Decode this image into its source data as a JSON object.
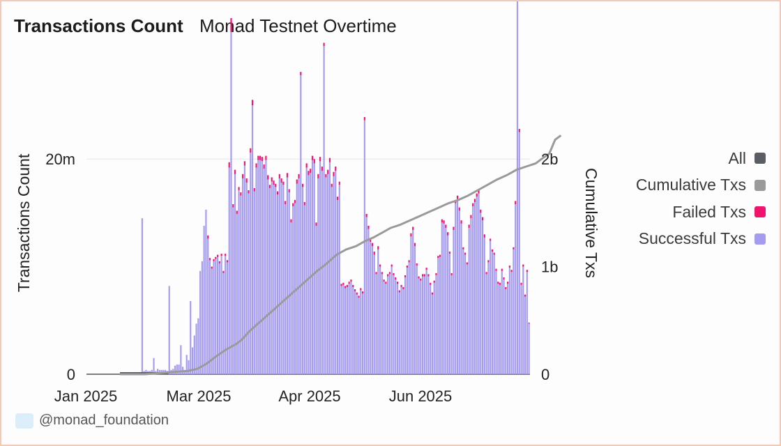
{
  "header": {
    "title": "Transactions Count",
    "subtitle": "Monad Testnet Overtime"
  },
  "credit": {
    "text": "@monad_foundation"
  },
  "legend": {
    "items": [
      {
        "label": "All",
        "color": "#5a5d63"
      },
      {
        "label": "Cumulative Txs",
        "color": "#9a9a9a"
      },
      {
        "label": "Failed Txs",
        "color": "#f0146e"
      },
      {
        "label": "Successful Txs",
        "color": "#a59cf0"
      }
    ]
  },
  "chart_data": {
    "type": "bar",
    "ylabel": "Transactions Count",
    "y2label": "Cumulative Txs",
    "x_ticks": [
      "Jan 2025",
      "Mar 2025",
      "Apr 2025",
      "Jun 2025"
    ],
    "y_ticks": [
      {
        "value": 0,
        "label": "0"
      },
      {
        "value": 20000000,
        "label": "20m"
      }
    ],
    "y2_ticks": [
      {
        "value": 0,
        "label": "0"
      },
      {
        "value": 1000000000,
        "label": "1b"
      },
      {
        "value": 2000000000,
        "label": "2b"
      }
    ],
    "ylim": [
      0,
      28500000
    ],
    "y2lim": [
      0,
      2850000000
    ],
    "grid": true,
    "legend_position": "right",
    "series": [
      {
        "name": "Successful Txs",
        "color": "#a59cf0",
        "kind": "bar",
        "values": [
          0.05,
          0.05,
          0.1,
          0.1,
          0.12,
          0.1,
          0.1,
          0.2,
          0.15,
          0.1,
          0.2,
          14.5,
          0.3,
          0.4,
          0.3,
          0.3,
          0.4,
          1.5,
          0.3,
          0.5,
          0.4,
          0.4,
          0.4,
          0.4,
          0.3,
          8.2,
          0.4,
          0.5,
          0.8,
          0.9,
          0.9,
          2.7,
          0.7,
          0.4,
          1.8,
          1.3,
          6.8,
          2.5,
          3.6,
          4.7,
          5.2,
          9.6,
          10.5,
          13.8,
          15.3,
          12.6,
          10.6,
          9.8,
          10.5,
          10.7,
          10.9,
          10.3,
          11.0,
          9.4,
          11.0,
          10.4,
          19.2,
          31.8,
          15.5,
          18.6,
          14.9,
          17.1,
          16.6,
          18.2,
          19.4,
          17.8,
          16.8,
          20.6,
          25.0,
          17.0,
          19.2,
          19.9,
          19.9,
          19.8,
          19.1,
          19.9,
          18.1,
          17.3,
          17.9,
          17.6,
          17.4,
          16.7,
          18.2,
          17.8,
          17.6,
          15.8,
          18.3,
          16.9,
          14.1,
          15.6,
          15.9,
          17.7,
          18.2,
          27.8,
          17.4,
          15.7,
          19.2,
          18.5,
          18.7,
          19.9,
          19.6,
          13.8,
          18.2,
          19.8,
          18.9,
          30.5,
          18.3,
          18.6,
          19.7,
          17.4,
          18.4,
          18.9,
          16.2,
          17.6,
          8.2,
          8.3,
          8.0,
          8.1,
          8.4,
          8.6,
          8.1,
          7.7,
          7.4,
          7.1,
          7.8,
          7.5,
          23.6,
          14.6,
          13.5,
          12.3,
          11.9,
          11.1,
          9.3,
          11.6,
          10.0,
          9.3,
          8.6,
          8.4,
          9.1,
          9.3,
          10.0,
          9.2,
          8.8,
          8.4,
          7.6,
          8.1,
          7.9,
          9.0,
          9.9,
          10.4,
          12.8,
          13.4,
          11.9,
          10.1,
          8.9,
          8.7,
          9.1,
          9.1,
          9.7,
          9.1,
          8.3,
          7.4,
          8.5,
          9.2,
          10.8,
          10.9,
          14.1,
          14.0,
          13.6,
          12.9,
          11.2,
          9.2,
          13.4,
          15.9,
          16.3,
          15.2,
          14.0,
          11.6,
          11.1,
          10.2,
          13.6,
          14.5,
          15.6,
          16.0,
          16.5,
          16.8,
          15.0,
          14.3,
          12.7,
          9.3,
          10.4,
          12.4,
          11.4,
          11.1,
          9.6,
          8.4,
          8.3,
          9.6,
          8.8,
          7.9,
          8.4,
          9.9,
          9.5,
          11.6,
          15.8,
          35.1,
          22.5,
          8.3,
          10.0,
          7.2,
          9.5,
          4.7
        ]
      },
      {
        "name": "Failed Txs",
        "color": "#f0146e",
        "kind": "bar",
        "values": [
          0,
          0,
          0,
          0,
          0,
          0,
          0,
          0,
          0,
          0,
          0,
          0,
          0,
          0,
          0,
          0,
          0,
          0,
          0,
          0,
          0,
          0,
          0,
          0,
          0,
          0,
          0,
          0,
          0,
          0,
          0,
          0,
          0,
          0,
          0,
          0,
          0,
          0,
          0,
          0,
          0,
          0,
          0,
          0,
          0,
          0.3,
          0.2,
          0.2,
          0.2,
          0.2,
          0.2,
          0.2,
          0.2,
          0.2,
          0.2,
          0.2,
          0.5,
          1.3,
          0.3,
          0.4,
          0.3,
          0.3,
          0.3,
          0.4,
          0.4,
          0.4,
          0.3,
          0.4,
          0.5,
          0.3,
          0.4,
          0.4,
          0.4,
          0.4,
          0.4,
          0.4,
          0.4,
          0.3,
          0.4,
          0.4,
          0.3,
          0.3,
          0.4,
          0.4,
          0.3,
          0.3,
          0.4,
          0.3,
          0.3,
          0.3,
          0.3,
          0.4,
          0.4,
          0.3,
          0.3,
          0.3,
          0.4,
          0.4,
          0.4,
          0.4,
          0.4,
          0.3,
          0.4,
          0.4,
          0.4,
          0.3,
          0.3,
          0.4,
          0.4,
          0.3,
          0.4,
          0.4,
          0.3,
          0.3,
          0.2,
          0.2,
          0.2,
          0.2,
          0.2,
          0.2,
          0.2,
          0.2,
          0.2,
          0.2,
          0.2,
          0.2,
          0.3,
          0.3,
          0.3,
          0.3,
          0.3,
          0.3,
          0.2,
          0.3,
          0.2,
          0.2,
          0.2,
          0.2,
          0.2,
          0.2,
          0.2,
          0.2,
          0.2,
          0.2,
          0.2,
          0.2,
          0.2,
          0.2,
          0.2,
          0.2,
          0.3,
          0.3,
          0.3,
          0.2,
          0.2,
          0.2,
          0.2,
          0.2,
          0.2,
          0.2,
          0.2,
          0.2,
          0.2,
          0.2,
          0.2,
          0.2,
          0.3,
          0.3,
          0.3,
          0.3,
          0.2,
          0.2,
          0.3,
          0.3,
          0.3,
          0.3,
          0.3,
          0.2,
          0.2,
          0.2,
          0.3,
          0.3,
          0.3,
          0.3,
          0.3,
          0.3,
          0.3,
          0.3,
          0.3,
          0.2,
          0.2,
          0.2,
          0.2,
          0.2,
          0.2,
          0.2,
          0.2,
          0.2,
          0.2,
          0.2,
          0.2,
          0.2,
          0.2,
          0.2,
          0.3,
          0.3,
          0.3,
          0.2,
          0.2,
          0.2,
          0.2,
          0.1
        ]
      },
      {
        "name": "Cumulative Txs",
        "color": "#9a9a9a",
        "kind": "line",
        "points": [
          [
            0,
            0.0
          ],
          [
            13,
            0.0
          ],
          [
            20,
            0.01
          ],
          [
            27,
            0.02
          ],
          [
            35,
            0.03
          ],
          [
            40,
            0.05
          ],
          [
            45,
            0.1
          ],
          [
            50,
            0.17
          ],
          [
            55,
            0.23
          ],
          [
            60,
            0.28
          ],
          [
            63,
            0.32
          ],
          [
            67,
            0.4
          ],
          [
            72,
            0.48
          ],
          [
            77,
            0.56
          ],
          [
            82,
            0.64
          ],
          [
            87,
            0.72
          ],
          [
            92,
            0.8
          ],
          [
            97,
            0.88
          ],
          [
            102,
            0.96
          ],
          [
            107,
            1.03
          ],
          [
            112,
            1.11
          ],
          [
            117,
            1.16
          ],
          [
            122,
            1.19
          ],
          [
            127,
            1.24
          ],
          [
            131,
            1.27
          ],
          [
            135,
            1.31
          ],
          [
            140,
            1.36
          ],
          [
            145,
            1.39
          ],
          [
            150,
            1.43
          ],
          [
            155,
            1.47
          ],
          [
            160,
            1.51
          ],
          [
            165,
            1.55
          ],
          [
            170,
            1.59
          ],
          [
            175,
            1.62
          ],
          [
            180,
            1.66
          ],
          [
            185,
            1.71
          ],
          [
            190,
            1.76
          ],
          [
            195,
            1.81
          ],
          [
            200,
            1.85
          ],
          [
            205,
            1.9
          ],
          [
            210,
            1.93
          ],
          [
            215,
            1.96
          ],
          [
            218,
            2.0
          ],
          [
            222,
            2.05
          ],
          [
            225,
            2.18
          ],
          [
            228,
            2.22
          ]
        ]
      }
    ],
    "all_series": {
      "name": "All",
      "color": "#5a5d63",
      "kind": "line",
      "x_range": [
        0,
        25
      ]
    }
  }
}
